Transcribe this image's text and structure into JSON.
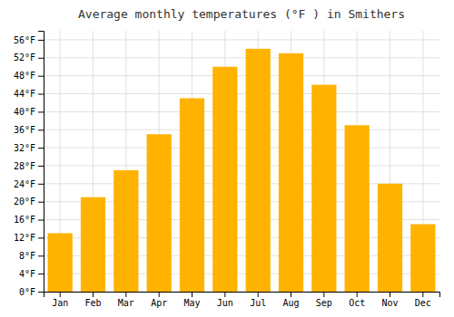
{
  "chart_data": {
    "type": "bar",
    "title": "Average monthly temperatures (°F ) in Smithers",
    "categories": [
      "Jan",
      "Feb",
      "Mar",
      "Apr",
      "May",
      "Jun",
      "Jul",
      "Aug",
      "Sep",
      "Oct",
      "Nov",
      "Dec"
    ],
    "values": [
      13,
      21,
      27,
      35,
      43,
      50,
      54,
      53,
      46,
      37,
      24,
      15
    ],
    "color": "#FFB300",
    "ylim": [
      0,
      58
    ],
    "yticks": [
      {
        "value": 0,
        "label": "0°F"
      },
      {
        "value": 4,
        "label": "4°F"
      },
      {
        "value": 8,
        "label": "8°F"
      },
      {
        "value": 12,
        "label": "12°F"
      },
      {
        "value": 16,
        "label": "16°F"
      },
      {
        "value": 20,
        "label": "20°F"
      },
      {
        "value": 24,
        "label": "24°F"
      },
      {
        "value": 28,
        "label": "28°F"
      },
      {
        "value": 32,
        "label": "32°F"
      },
      {
        "value": 36,
        "label": "36°F"
      },
      {
        "value": 40,
        "label": "40°F"
      },
      {
        "value": 44,
        "label": "44°F"
      },
      {
        "value": 48,
        "label": "48°F"
      },
      {
        "value": 52,
        "label": "52°F"
      },
      {
        "value": 56,
        "label": "56°F"
      }
    ],
    "grid": true
  }
}
